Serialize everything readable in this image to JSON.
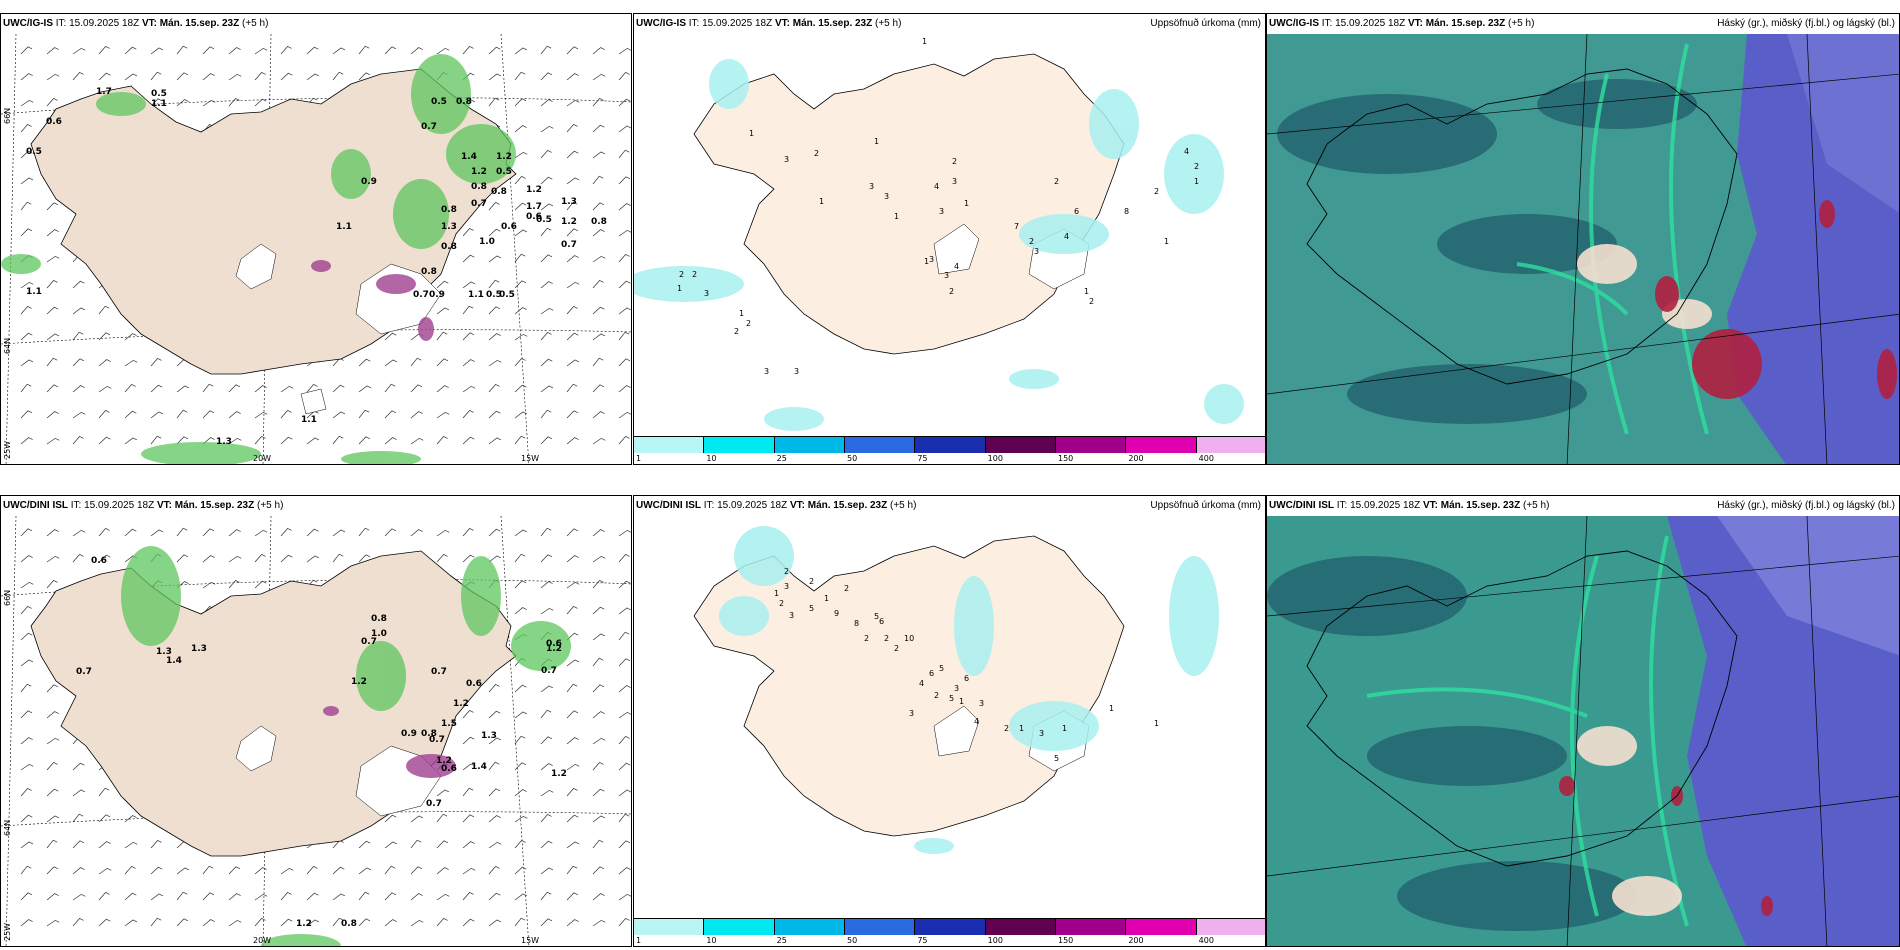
{
  "rows": [
    {
      "model": "UWC/IG-IS",
      "it_label": "IT:",
      "it_value": "15.09.2025 18Z",
      "vt_label": "VT:",
      "vt_value": "Mán. 15.sep. 23Z",
      "offset": "(+5 h)"
    },
    {
      "model": "UWC/DINI ISL",
      "it_label": "IT:",
      "it_value": "15.09.2025 18Z",
      "vt_label": "VT:",
      "vt_value": "Mán. 15.sep. 23Z",
      "offset": "(+5 h)"
    }
  ],
  "titles": {
    "precip": "Uppsöfnuð úrkoma (mm)",
    "cloud": "Háský (gr.), miðský (fj.bl.) og lágský (bl.)"
  },
  "coords": {
    "lat_66": "66N",
    "lat_64": "64N",
    "lon_25": "25W",
    "lon_20": "20W",
    "lon_15": "15W"
  },
  "colorbar": {
    "ticks": [
      "1",
      "10",
      "25",
      "50",
      "75",
      "100",
      "150",
      "200",
      "400"
    ],
    "colors": [
      "#b8f5f5",
      "#00e8f0",
      "#00b8e8",
      "#2a6ae0",
      "#1a2fb0",
      "#600050",
      "#a0008a",
      "#e000b0",
      "#f0b0f0"
    ]
  },
  "labels": {
    "p1": [
      "0.6",
      "0.5",
      "1.1",
      "1.7",
      "0.5",
      "1.1",
      "0.5",
      "0.8",
      "0.7",
      "1.4",
      "1.2",
      "1.2",
      "0.5",
      "0.8",
      "1.2",
      "0.8",
      "0.7",
      "0.9",
      "1.7",
      "1.3",
      "0.6",
      "0.8",
      "0.6",
      "0.5",
      "1.2",
      "0.8",
      "1.3",
      "0.8",
      "1.0",
      "1.1",
      "0.8",
      "0.7",
      "0.9",
      "1.1",
      "0.5",
      "0.5",
      "0.7",
      "1.1",
      "1.3"
    ],
    "p2": [
      "1",
      "2",
      "1",
      "2",
      "3",
      "1",
      "2",
      "2",
      "1",
      "3",
      "3",
      "3",
      "1",
      "2",
      "4",
      "3",
      "1",
      "1",
      "2",
      "3",
      "2",
      "1",
      "4",
      "3",
      "1",
      "3",
      "2",
      "6",
      "4",
      "3",
      "2",
      "7",
      "8",
      "4",
      "2",
      "2",
      "1",
      "1",
      "1",
      "2",
      "3",
      "3",
      "1"
    ],
    "p4": [
      "0.6",
      "0.7",
      "1.3",
      "1.4",
      "1.3",
      "0.7",
      "0.8",
      "1.0",
      "0.7",
      "1.2",
      "0.6",
      "0.7",
      "0.6",
      "1.2",
      "1.2",
      "1.5",
      "0.9",
      "0.8",
      "1.3",
      "0.7",
      "1.2",
      "1.4",
      "0.6",
      "1.2",
      "0.7",
      "0.8",
      "1.2"
    ],
    "p5": [
      "2",
      "2",
      "1",
      "2",
      "3",
      "9",
      "5",
      "6",
      "2",
      "2",
      "10",
      "2",
      "3",
      "2",
      "5",
      "1",
      "8",
      "5",
      "3",
      "6",
      "4",
      "6",
      "3",
      "2",
      "5",
      "1",
      "3",
      "4",
      "2",
      "1",
      "3",
      "5",
      "1",
      "1",
      "1"
    ]
  }
}
